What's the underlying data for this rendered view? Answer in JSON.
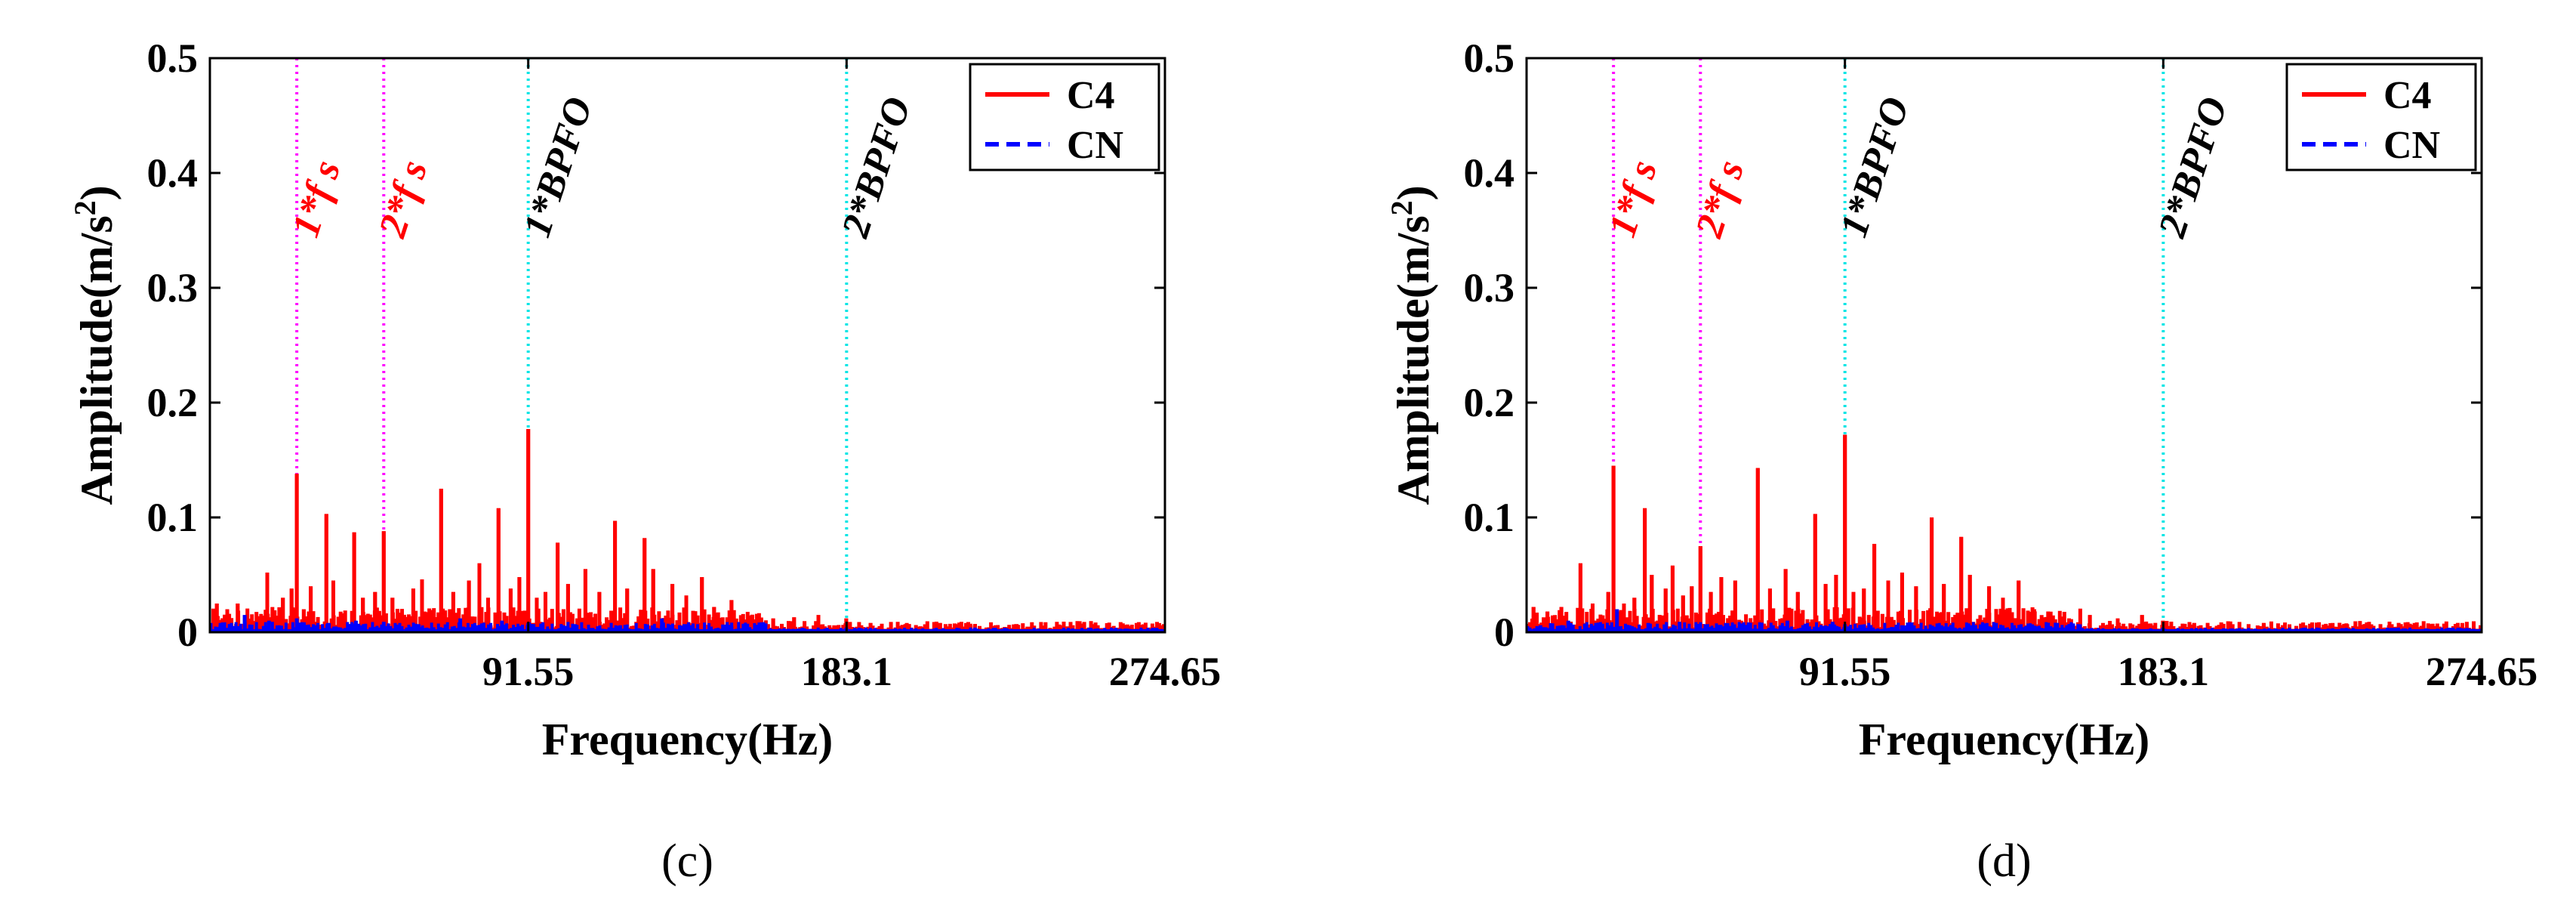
{
  "figure": {
    "panels": [
      "c",
      "d"
    ]
  },
  "chart_data": [
    {
      "type": "line",
      "panel_label": "(c)",
      "title": "",
      "xlabel": "Frequency(Hz)",
      "ylabel": "Amplitude(m/s2)",
      "ylabel_parts": {
        "main": "Amplitude(m/s",
        "superscript": "2",
        "close": ")"
      },
      "xlim": [
        0,
        274.65
      ],
      "ylim": [
        0,
        0.5
      ],
      "x_ticks": [
        91.55,
        183.1,
        274.65
      ],
      "x_tick_labels": [
        "91.55",
        "183.1",
        "274.65"
      ],
      "y_ticks": [
        0,
        0.1,
        0.2,
        0.3,
        0.4,
        0.5
      ],
      "y_tick_labels": [
        "0",
        "0.1",
        "0.2",
        "0.3",
        "0.4",
        "0.5"
      ],
      "legend": {
        "position": "top-right",
        "entries": [
          {
            "name": "C4",
            "color": "#ff0000",
            "style": "solid"
          },
          {
            "name": "CN",
            "color": "#0000ff",
            "style": "dashed"
          }
        ]
      },
      "markers": [
        {
          "label": "1*f s",
          "x": 25,
          "color": "#ff00ff",
          "text_color": "#ff0000"
        },
        {
          "label": "2*f s",
          "x": 50,
          "color": "#ff00ff",
          "text_color": "#ff0000"
        },
        {
          "label": "1*BPFO",
          "x": 91.55,
          "color": "#00e5e5",
          "text_color": "#000000"
        },
        {
          "label": "2*BPFO",
          "x": 183.1,
          "color": "#00e5e5",
          "text_color": "#000000"
        }
      ],
      "series": [
        {
          "name": "C4",
          "color": "#ff0000",
          "peaks": [
            {
              "x": 2,
              "y": 0.025
            },
            {
              "x": 5,
              "y": 0.02
            },
            {
              "x": 8,
              "y": 0.025
            },
            {
              "x": 16.5,
              "y": 0.052
            },
            {
              "x": 21,
              "y": 0.03
            },
            {
              "x": 23.5,
              "y": 0.038
            },
            {
              "x": 25,
              "y": 0.138
            },
            {
              "x": 27,
              "y": 0.02
            },
            {
              "x": 29,
              "y": 0.04
            },
            {
              "x": 33.5,
              "y": 0.103
            },
            {
              "x": 35.5,
              "y": 0.045
            },
            {
              "x": 41.5,
              "y": 0.087
            },
            {
              "x": 44,
              "y": 0.03
            },
            {
              "x": 47.5,
              "y": 0.035
            },
            {
              "x": 50,
              "y": 0.088
            },
            {
              "x": 52.5,
              "y": 0.03
            },
            {
              "x": 58.5,
              "y": 0.038
            },
            {
              "x": 61,
              "y": 0.046
            },
            {
              "x": 66.5,
              "y": 0.125
            },
            {
              "x": 70,
              "y": 0.035
            },
            {
              "x": 74.5,
              "y": 0.045
            },
            {
              "x": 77.5,
              "y": 0.06
            },
            {
              "x": 80,
              "y": 0.03
            },
            {
              "x": 83,
              "y": 0.108
            },
            {
              "x": 86.5,
              "y": 0.038
            },
            {
              "x": 89,
              "y": 0.048
            },
            {
              "x": 91.55,
              "y": 0.177
            },
            {
              "x": 94,
              "y": 0.03
            },
            {
              "x": 96.5,
              "y": 0.035
            },
            {
              "x": 100,
              "y": 0.078
            },
            {
              "x": 103,
              "y": 0.042
            },
            {
              "x": 108,
              "y": 0.055
            },
            {
              "x": 112,
              "y": 0.035
            },
            {
              "x": 116.5,
              "y": 0.097
            },
            {
              "x": 120,
              "y": 0.038
            },
            {
              "x": 125,
              "y": 0.082
            },
            {
              "x": 127.5,
              "y": 0.055
            },
            {
              "x": 133,
              "y": 0.042
            },
            {
              "x": 137,
              "y": 0.032
            },
            {
              "x": 141.5,
              "y": 0.048
            },
            {
              "x": 145,
              "y": 0.022
            },
            {
              "x": 150,
              "y": 0.028
            },
            {
              "x": 156,
              "y": 0.015
            },
            {
              "x": 162,
              "y": 0.012
            },
            {
              "x": 168,
              "y": 0.013
            },
            {
              "x": 175,
              "y": 0.015
            },
            {
              "x": 183,
              "y": 0.012
            },
            {
              "x": 190,
              "y": 0.008
            },
            {
              "x": 200,
              "y": 0.007
            },
            {
              "x": 210,
              "y": 0.008
            },
            {
              "x": 220,
              "y": 0.006
            },
            {
              "x": 232,
              "y": 0.007
            },
            {
              "x": 245,
              "y": 0.006
            },
            {
              "x": 258,
              "y": 0.005
            },
            {
              "x": 270,
              "y": 0.004
            }
          ]
        },
        {
          "name": "CN",
          "color": "#0000ff",
          "peaks": [
            {
              "x": 3,
              "y": 0.006
            },
            {
              "x": 10,
              "y": 0.015
            },
            {
              "x": 17,
              "y": 0.01
            },
            {
              "x": 25,
              "y": 0.012
            },
            {
              "x": 34,
              "y": 0.008
            },
            {
              "x": 42,
              "y": 0.01
            },
            {
              "x": 50,
              "y": 0.009
            },
            {
              "x": 60,
              "y": 0.007
            },
            {
              "x": 72,
              "y": 0.012
            },
            {
              "x": 84,
              "y": 0.01
            },
            {
              "x": 91.55,
              "y": 0.008
            },
            {
              "x": 105,
              "y": 0.007
            },
            {
              "x": 118,
              "y": 0.006
            },
            {
              "x": 130,
              "y": 0.012
            },
            {
              "x": 150,
              "y": 0.005
            },
            {
              "x": 183,
              "y": 0.004
            },
            {
              "x": 220,
              "y": 0.004
            },
            {
              "x": 260,
              "y": 0.003
            }
          ]
        }
      ]
    },
    {
      "type": "line",
      "panel_label": "(d)",
      "title": "",
      "xlabel": "Frequency(Hz)",
      "ylabel": "Amplitude(m/s2)",
      "ylabel_parts": {
        "main": "Amplitude(m/s",
        "superscript": "2",
        "close": ")"
      },
      "xlim": [
        0,
        274.65
      ],
      "ylim": [
        0,
        0.5
      ],
      "x_ticks": [
        91.55,
        183.1,
        274.65
      ],
      "x_tick_labels": [
        "91.55",
        "183.1",
        "274.65"
      ],
      "y_ticks": [
        0,
        0.1,
        0.2,
        0.3,
        0.4,
        0.5
      ],
      "y_tick_labels": [
        "0",
        "0.1",
        "0.2",
        "0.3",
        "0.4",
        "0.5"
      ],
      "legend": {
        "position": "top-right",
        "entries": [
          {
            "name": "C4",
            "color": "#ff0000",
            "style": "solid"
          },
          {
            "name": "CN",
            "color": "#0000ff",
            "style": "dashed"
          }
        ]
      },
      "markers": [
        {
          "label": "1*f s",
          "x": 25,
          "color": "#ff00ff",
          "text_color": "#ff0000"
        },
        {
          "label": "2*f s",
          "x": 50,
          "color": "#ff00ff",
          "text_color": "#ff0000"
        },
        {
          "label": "1*BPFO",
          "x": 91.55,
          "color": "#00e5e5",
          "text_color": "#000000"
        },
        {
          "label": "2*BPFO",
          "x": 183.1,
          "color": "#00e5e5",
          "text_color": "#000000"
        }
      ],
      "series": [
        {
          "name": "C4",
          "color": "#ff0000",
          "peaks": [
            {
              "x": 2,
              "y": 0.022
            },
            {
              "x": 6,
              "y": 0.018
            },
            {
              "x": 10,
              "y": 0.022
            },
            {
              "x": 15.5,
              "y": 0.06
            },
            {
              "x": 19,
              "y": 0.025
            },
            {
              "x": 23.5,
              "y": 0.035
            },
            {
              "x": 25,
              "y": 0.145
            },
            {
              "x": 28,
              "y": 0.025
            },
            {
              "x": 31,
              "y": 0.03
            },
            {
              "x": 34,
              "y": 0.108
            },
            {
              "x": 36,
              "y": 0.05
            },
            {
              "x": 40,
              "y": 0.038
            },
            {
              "x": 42,
              "y": 0.058
            },
            {
              "x": 45,
              "y": 0.032
            },
            {
              "x": 47.5,
              "y": 0.04
            },
            {
              "x": 50,
              "y": 0.075
            },
            {
              "x": 53,
              "y": 0.035
            },
            {
              "x": 56,
              "y": 0.048
            },
            {
              "x": 60,
              "y": 0.045
            },
            {
              "x": 66.5,
              "y": 0.143
            },
            {
              "x": 70,
              "y": 0.038
            },
            {
              "x": 74.5,
              "y": 0.055
            },
            {
              "x": 78,
              "y": 0.035
            },
            {
              "x": 83,
              "y": 0.103
            },
            {
              "x": 86,
              "y": 0.042
            },
            {
              "x": 89,
              "y": 0.05
            },
            {
              "x": 91.55,
              "y": 0.172
            },
            {
              "x": 94,
              "y": 0.035
            },
            {
              "x": 97,
              "y": 0.038
            },
            {
              "x": 100,
              "y": 0.077
            },
            {
              "x": 104,
              "y": 0.045
            },
            {
              "x": 108,
              "y": 0.052
            },
            {
              "x": 112,
              "y": 0.04
            },
            {
              "x": 116.5,
              "y": 0.1
            },
            {
              "x": 120,
              "y": 0.042
            },
            {
              "x": 125,
              "y": 0.083
            },
            {
              "x": 127.5,
              "y": 0.05
            },
            {
              "x": 133,
              "y": 0.04
            },
            {
              "x": 137,
              "y": 0.03
            },
            {
              "x": 141.5,
              "y": 0.045
            },
            {
              "x": 146,
              "y": 0.02
            },
            {
              "x": 150,
              "y": 0.018
            },
            {
              "x": 156,
              "y": 0.012
            },
            {
              "x": 162,
              "y": 0.015
            },
            {
              "x": 170,
              "y": 0.012
            },
            {
              "x": 177,
              "y": 0.015
            },
            {
              "x": 183,
              "y": 0.01
            },
            {
              "x": 192,
              "y": 0.008
            },
            {
              "x": 202,
              "y": 0.007
            },
            {
              "x": 212,
              "y": 0.008
            },
            {
              "x": 224,
              "y": 0.006
            },
            {
              "x": 236,
              "y": 0.007
            },
            {
              "x": 248,
              "y": 0.006
            },
            {
              "x": 260,
              "y": 0.007
            },
            {
              "x": 270,
              "y": 0.004
            }
          ]
        },
        {
          "name": "CN",
          "color": "#0000ff",
          "peaks": [
            {
              "x": 4,
              "y": 0.006
            },
            {
              "x": 12,
              "y": 0.01
            },
            {
              "x": 20,
              "y": 0.008
            },
            {
              "x": 26,
              "y": 0.02
            },
            {
              "x": 35,
              "y": 0.008
            },
            {
              "x": 44,
              "y": 0.009
            },
            {
              "x": 52,
              "y": 0.007
            },
            {
              "x": 63,
              "y": 0.006
            },
            {
              "x": 75,
              "y": 0.01
            },
            {
              "x": 88,
              "y": 0.009
            },
            {
              "x": 91.55,
              "y": 0.007
            },
            {
              "x": 108,
              "y": 0.006
            },
            {
              "x": 120,
              "y": 0.005
            },
            {
              "x": 135,
              "y": 0.008
            },
            {
              "x": 155,
              "y": 0.004
            },
            {
              "x": 183,
              "y": 0.004
            },
            {
              "x": 225,
              "y": 0.003
            },
            {
              "x": 262,
              "y": 0.003
            }
          ]
        }
      ]
    }
  ]
}
